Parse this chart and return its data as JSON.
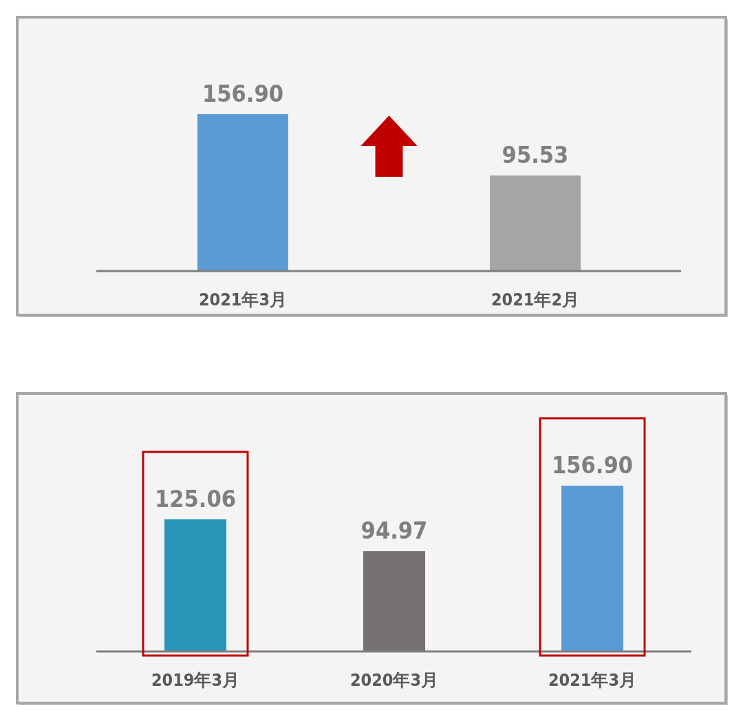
{
  "chart_data": [
    {
      "type": "bar",
      "categories": [
        "2021年3月",
        "2021年2月"
      ],
      "values": [
        156.9,
        95.53
      ],
      "colors": [
        "#5b9bd5",
        "#a5a5a5"
      ],
      "value_labels": [
        "156.90",
        "95.53"
      ]
    },
    {
      "type": "bar",
      "categories": [
        "2019年3月",
        "2020年3月",
        "2021年3月"
      ],
      "values": [
        125.06,
        94.97,
        156.9
      ],
      "colors": [
        "#2796b9",
        "#767171",
        "#5b9bd5"
      ],
      "value_labels": [
        "125.06",
        "94.97",
        "156.90"
      ]
    }
  ]
}
